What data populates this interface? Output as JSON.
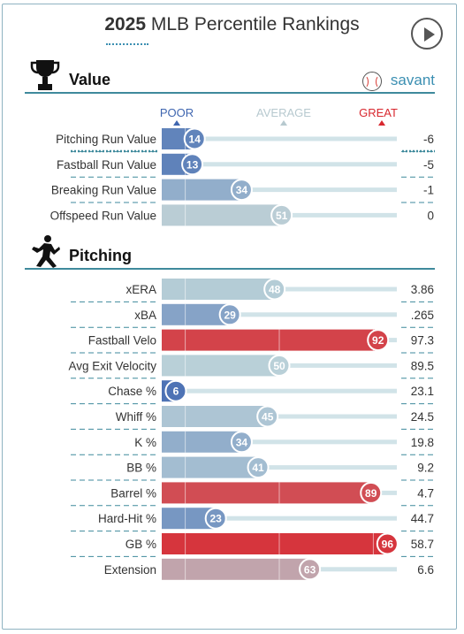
{
  "header": {
    "title_year": "2025",
    "title_rest": " MLB Percentile Rankings"
  },
  "controls": {
    "play_icon": "play-icon"
  },
  "scale": {
    "poor": "POOR",
    "average": "AVERAGE",
    "great": "GREAT"
  },
  "colors": {
    "poor": "#3f66b0",
    "average": "#b9d0d8",
    "great": "#d8282f",
    "track": "#c5dce2",
    "accent": "#3f8a9c"
  },
  "sections": {
    "value": {
      "title": "Value",
      "icon": "trophy-icon",
      "brand": "savant",
      "brand_icon": "baseball-icon"
    },
    "pitching": {
      "title": "Pitching",
      "icon": "pitcher-icon"
    }
  },
  "chart_data": [
    {
      "type": "bar",
      "section": "Value",
      "categories": [
        "Pitching Run Value",
        "Fastball Run Value",
        "Breaking Run Value",
        "Offspeed Run Value"
      ],
      "percentiles": [
        14,
        13,
        34,
        51
      ],
      "stat_values": [
        "-6",
        "-5",
        "-1",
        "0"
      ],
      "xlim": [
        0,
        100
      ]
    },
    {
      "type": "bar",
      "section": "Pitching",
      "categories": [
        "xERA",
        "xBA",
        "Fastball Velo",
        "Avg Exit Velocity",
        "Chase %",
        "Whiff %",
        "K %",
        "BB %",
        "Barrel %",
        "Hard-Hit %",
        "GB %",
        "Extension"
      ],
      "percentiles": [
        48,
        29,
        92,
        50,
        6,
        45,
        34,
        41,
        89,
        23,
        96,
        63
      ],
      "stat_values": [
        "3.86",
        ".265",
        "97.3",
        "89.5",
        "23.1",
        "24.5",
        "19.8",
        "9.2",
        "4.7",
        "44.7",
        "58.7",
        "6.6"
      ],
      "xlim": [
        0,
        100
      ]
    }
  ]
}
